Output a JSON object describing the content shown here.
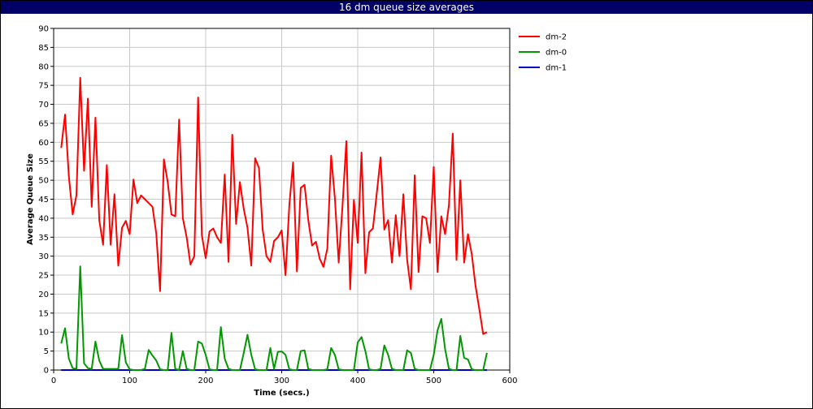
{
  "window": {
    "title": "16 dm queue size averages"
  },
  "chart_data": {
    "type": "line",
    "title": "16 dm queue size averages",
    "xlabel": "Time (secs.)",
    "ylabel": "Average Queue Size",
    "xlim": [
      0,
      600
    ],
    "ylim": [
      0,
      90
    ],
    "xticks": [
      0,
      100,
      200,
      300,
      400,
      500,
      600
    ],
    "yticks": [
      0,
      5,
      10,
      15,
      20,
      25,
      30,
      35,
      40,
      45,
      50,
      55,
      60,
      65,
      70,
      75,
      80,
      85,
      90
    ],
    "grid": true,
    "legend_position": "right",
    "series": [
      {
        "name": "dm-2",
        "color": "#ff0000",
        "points": [
          [
            10,
            58.5
          ],
          [
            15,
            67.3
          ],
          [
            20,
            51
          ],
          [
            25,
            41
          ],
          [
            30,
            46
          ],
          [
            35,
            77
          ],
          [
            40,
            52.5
          ],
          [
            45,
            71.5
          ],
          [
            50,
            43
          ],
          [
            55,
            66.5
          ],
          [
            60,
            39.5
          ],
          [
            65,
            33
          ],
          [
            70,
            54
          ],
          [
            75,
            33
          ],
          [
            80,
            46.3
          ],
          [
            85,
            27.5
          ],
          [
            90,
            37.5
          ],
          [
            95,
            39.3
          ],
          [
            100,
            35.8
          ],
          [
            105,
            50.2
          ],
          [
            110,
            44
          ],
          [
            115,
            46
          ],
          [
            120,
            45
          ],
          [
            125,
            44
          ],
          [
            130,
            43
          ],
          [
            135,
            36
          ],
          [
            140,
            20.8
          ],
          [
            145,
            55.5
          ],
          [
            150,
            49.5
          ],
          [
            155,
            41
          ],
          [
            160,
            40.5
          ],
          [
            165,
            66
          ],
          [
            170,
            40
          ],
          [
            175,
            35
          ],
          [
            180,
            27.8
          ],
          [
            185,
            30
          ],
          [
            190,
            71.8
          ],
          [
            195,
            35.5
          ],
          [
            200,
            29.5
          ],
          [
            205,
            36.5
          ],
          [
            210,
            37.3
          ],
          [
            215,
            35
          ],
          [
            220,
            33.5
          ],
          [
            225,
            51.5
          ],
          [
            230,
            28.5
          ],
          [
            235,
            62
          ],
          [
            240,
            38.5
          ],
          [
            245,
            49.5
          ],
          [
            250,
            42.5
          ],
          [
            255,
            37.5
          ],
          [
            260,
            27.5
          ],
          [
            265,
            55.8
          ],
          [
            270,
            53.3
          ],
          [
            275,
            37
          ],
          [
            280,
            30
          ],
          [
            285,
            28.5
          ],
          [
            290,
            34
          ],
          [
            295,
            35
          ],
          [
            300,
            36.8
          ],
          [
            305,
            25
          ],
          [
            310,
            43.5
          ],
          [
            315,
            54.7
          ],
          [
            320,
            26
          ],
          [
            325,
            48
          ],
          [
            330,
            48.8
          ],
          [
            335,
            39.5
          ],
          [
            340,
            32.8
          ],
          [
            345,
            33.8
          ],
          [
            350,
            29.3
          ],
          [
            355,
            27.2
          ],
          [
            360,
            32
          ],
          [
            365,
            56.5
          ],
          [
            370,
            45.3
          ],
          [
            375,
            28.3
          ],
          [
            380,
            43.3
          ],
          [
            385,
            60.3
          ],
          [
            390,
            21.3
          ],
          [
            395,
            44.8
          ],
          [
            400,
            33.5
          ],
          [
            405,
            57.3
          ],
          [
            410,
            25.5
          ],
          [
            415,
            36.3
          ],
          [
            420,
            37.3
          ],
          [
            425,
            46.5
          ],
          [
            430,
            56
          ],
          [
            435,
            37
          ],
          [
            440,
            39.5
          ],
          [
            445,
            28.3
          ],
          [
            450,
            40.8
          ],
          [
            455,
            30
          ],
          [
            460,
            46.3
          ],
          [
            465,
            29
          ],
          [
            470,
            21.3
          ],
          [
            475,
            51.3
          ],
          [
            480,
            25.8
          ],
          [
            485,
            40.5
          ],
          [
            490,
            40
          ],
          [
            495,
            33.5
          ],
          [
            500,
            53.5
          ],
          [
            505,
            25.8
          ],
          [
            510,
            40.5
          ],
          [
            515,
            35.8
          ],
          [
            520,
            43.5
          ],
          [
            525,
            62.3
          ],
          [
            530,
            29
          ],
          [
            535,
            50
          ],
          [
            540,
            28.3
          ],
          [
            545,
            35.8
          ],
          [
            550,
            30.5
          ],
          [
            555,
            22.2
          ],
          [
            560,
            16
          ],
          [
            565,
            9.5
          ],
          [
            570,
            10
          ]
        ]
      },
      {
        "name": "dm-0",
        "color": "#009900",
        "points": [
          [
            10,
            7
          ],
          [
            15,
            11
          ],
          [
            20,
            3
          ],
          [
            25,
            0.5
          ],
          [
            30,
            0.3
          ],
          [
            35,
            27.3
          ],
          [
            40,
            1.8
          ],
          [
            45,
            0.5
          ],
          [
            50,
            0.3
          ],
          [
            55,
            7.5
          ],
          [
            60,
            2.5
          ],
          [
            65,
            0.3
          ],
          [
            70,
            0.3
          ],
          [
            75,
            0.3
          ],
          [
            80,
            0.3
          ],
          [
            85,
            0.3
          ],
          [
            90,
            9.2
          ],
          [
            95,
            2
          ],
          [
            100,
            0.2
          ],
          [
            105,
            0
          ],
          [
            110,
            0
          ],
          [
            115,
            0
          ],
          [
            120,
            0.3
          ],
          [
            125,
            5.3
          ],
          [
            130,
            3.8
          ],
          [
            135,
            2.5
          ],
          [
            140,
            0.2
          ],
          [
            145,
            0
          ],
          [
            150,
            0
          ],
          [
            155,
            9.8
          ],
          [
            160,
            0.3
          ],
          [
            165,
            0
          ],
          [
            170,
            5
          ],
          [
            175,
            0.3
          ],
          [
            180,
            0
          ],
          [
            185,
            0
          ],
          [
            190,
            7.5
          ],
          [
            195,
            7
          ],
          [
            200,
            4
          ],
          [
            205,
            0.2
          ],
          [
            210,
            0
          ],
          [
            215,
            0
          ],
          [
            220,
            11.3
          ],
          [
            225,
            3
          ],
          [
            230,
            0.3
          ],
          [
            235,
            0
          ],
          [
            240,
            0
          ],
          [
            245,
            0
          ],
          [
            250,
            4.5
          ],
          [
            255,
            9.3
          ],
          [
            260,
            4
          ],
          [
            265,
            0.2
          ],
          [
            270,
            0
          ],
          [
            275,
            0
          ],
          [
            280,
            0
          ],
          [
            285,
            5.8
          ],
          [
            290,
            0.3
          ],
          [
            295,
            4.8
          ],
          [
            300,
            4.9
          ],
          [
            305,
            4
          ],
          [
            310,
            0.2
          ],
          [
            315,
            0
          ],
          [
            320,
            0
          ],
          [
            325,
            5
          ],
          [
            330,
            5.2
          ],
          [
            335,
            0.3
          ],
          [
            340,
            0
          ],
          [
            345,
            0
          ],
          [
            350,
            0
          ],
          [
            355,
            0
          ],
          [
            360,
            0.2
          ],
          [
            365,
            5.8
          ],
          [
            370,
            4
          ],
          [
            375,
            0.2
          ],
          [
            380,
            0
          ],
          [
            385,
            0
          ],
          [
            390,
            0
          ],
          [
            395,
            0
          ],
          [
            400,
            7.3
          ],
          [
            405,
            8.7
          ],
          [
            410,
            5
          ],
          [
            415,
            0.2
          ],
          [
            420,
            0
          ],
          [
            425,
            0
          ],
          [
            430,
            0.3
          ],
          [
            435,
            6.5
          ],
          [
            440,
            4
          ],
          [
            445,
            0.3
          ],
          [
            450,
            0
          ],
          [
            455,
            0
          ],
          [
            460,
            0
          ],
          [
            465,
            5.2
          ],
          [
            470,
            4.5
          ],
          [
            475,
            0.3
          ],
          [
            480,
            0
          ],
          [
            485,
            0
          ],
          [
            490,
            0
          ],
          [
            495,
            0
          ],
          [
            500,
            4
          ],
          [
            505,
            10.5
          ],
          [
            510,
            13.5
          ],
          [
            515,
            5.5
          ],
          [
            520,
            0.3
          ],
          [
            525,
            0
          ],
          [
            530,
            0
          ],
          [
            535,
            9
          ],
          [
            540,
            3.2
          ],
          [
            545,
            2.8
          ],
          [
            550,
            0.2
          ],
          [
            555,
            0
          ],
          [
            560,
            0
          ],
          [
            565,
            0
          ],
          [
            570,
            4.5
          ]
        ]
      },
      {
        "name": "dm-1",
        "color": "#0000cc",
        "points": [
          [
            10,
            0
          ],
          [
            570,
            0
          ]
        ]
      }
    ]
  }
}
